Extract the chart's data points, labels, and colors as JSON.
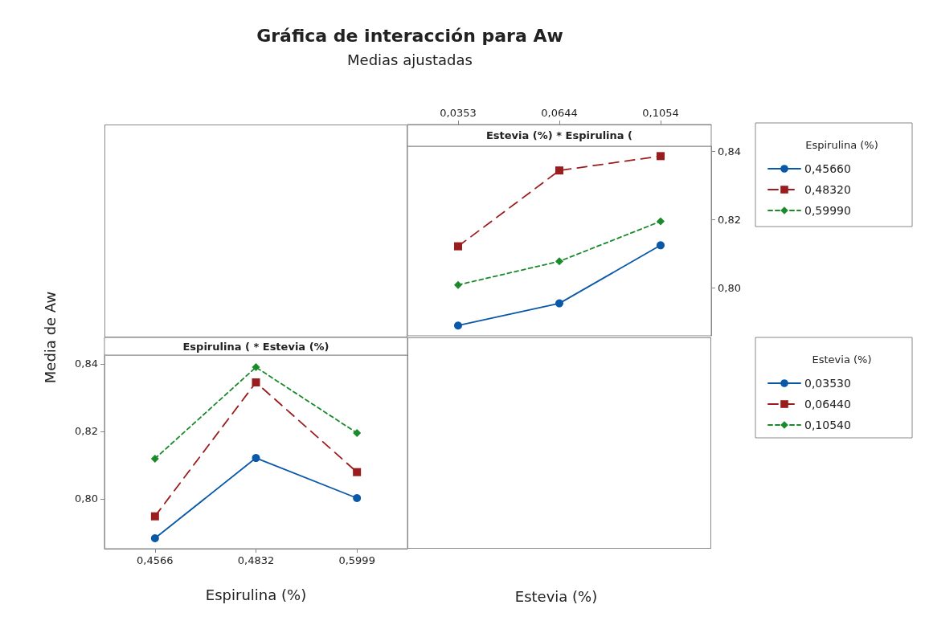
{
  "chart_data": [
    {
      "type": "line",
      "title": "Gráfica de interacción para Aw",
      "subtitle": "Medias ajustadas",
      "xlabel": "Estevia (%)",
      "annotations": [
        "Estevia (%) * Espirulina ("
      ],
      "categories": [
        "0,0353",
        "0,0644",
        "0,1054"
      ],
      "legend": "right",
      "legend_title": "Espirulina (%)",
      "ylim": [
        0.786,
        0.8415
      ],
      "yticks": [
        {
          "value": 0.8,
          "label": "0,80"
        },
        {
          "value": 0.82,
          "label": "0,82"
        },
        {
          "value": 0.84,
          "label": "0,84"
        }
      ],
      "series": [
        {
          "name": "0,45660",
          "color": "#0a58a8",
          "values": [
            0.789,
            0.7955,
            0.8125
          ],
          "marker": "circle",
          "line_style": "solid"
        },
        {
          "name": "0,48320",
          "color": "#9b1c1c",
          "values": [
            0.8122,
            0.8344,
            0.8386
          ],
          "marker": "square",
          "line_style": "dashed"
        },
        {
          "name": "0,59990",
          "color": "#1a8a2a",
          "values": [
            0.8009,
            0.8078,
            0.8195
          ],
          "marker": "diamond",
          "line_style": "dashed"
        }
      ]
    },
    {
      "type": "line",
      "xlabel": "Espirulina (%)",
      "ylabel": "Media de Aw",
      "annotations": [
        "Espirulina ( * Estevia (%)"
      ],
      "categories": [
        "0,4566",
        "0,4832",
        "0,5999"
      ],
      "legend": "right",
      "legend_title": "Estevia (%)",
      "ylim": [
        0.7852,
        0.8426
      ],
      "yticks": [
        {
          "value": 0.8,
          "label": "0,80"
        },
        {
          "value": 0.82,
          "label": "0,82"
        },
        {
          "value": 0.84,
          "label": "0,84"
        }
      ],
      "series": [
        {
          "name": "0,03530",
          "color": "#0a58a8",
          "values": [
            0.7883,
            0.8121,
            0.8002
          ],
          "marker": "circle",
          "line_style": "solid"
        },
        {
          "name": "0,06440",
          "color": "#9b1c1c",
          "values": [
            0.7948,
            0.8345,
            0.8079
          ],
          "marker": "square",
          "line_style": "dashed"
        },
        {
          "name": "0,10540",
          "color": "#1a8a2a",
          "values": [
            0.8119,
            0.839,
            0.8195
          ],
          "marker": "diamond",
          "line_style": "dashed"
        }
      ]
    }
  ]
}
